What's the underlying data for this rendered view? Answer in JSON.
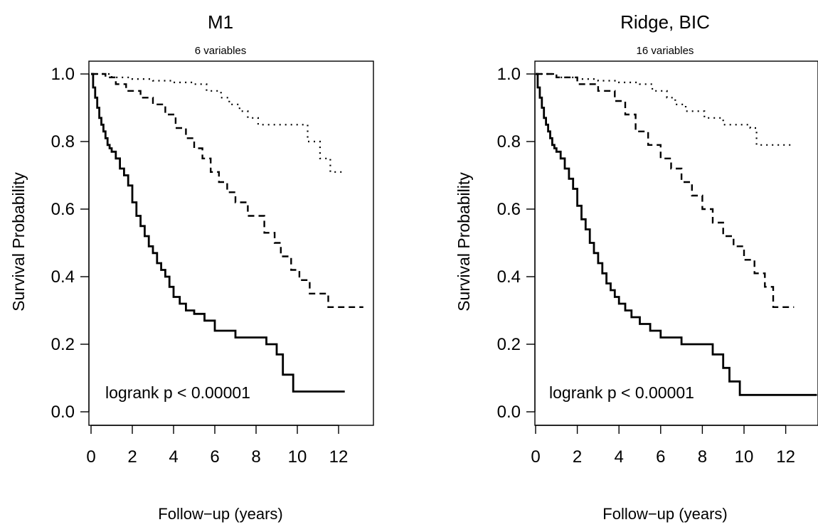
{
  "chart_data": [
    {
      "type": "line",
      "title": "M1",
      "subtitle": "6 variables",
      "xlabel": "Follow−up (years)",
      "ylabel": "Survival Probability",
      "xlim": [
        0,
        13.5
      ],
      "ylim": [
        0,
        1.0
      ],
      "xticks": [
        0,
        2,
        4,
        6,
        8,
        10,
        12
      ],
      "yticks": [
        0.0,
        0.2,
        0.4,
        0.6,
        0.8,
        1.0
      ],
      "xtick_labels": [
        "0",
        "2",
        "4",
        "6",
        "8",
        "10",
        "12"
      ],
      "ytick_labels": [
        "0.0",
        "0.2",
        "0.4",
        "0.6",
        "0.8",
        "1.0"
      ],
      "grid": false,
      "annotation": "logrank p < 0.00001",
      "series": [
        {
          "style": "solid",
          "x": [
            0,
            0.1,
            0.2,
            0.3,
            0.4,
            0.5,
            0.6,
            0.7,
            0.8,
            0.9,
            1.0,
            1.2,
            1.4,
            1.6,
            1.8,
            2.0,
            2.2,
            2.4,
            2.6,
            2.8,
            3.0,
            3.2,
            3.4,
            3.6,
            3.8,
            4.0,
            4.3,
            4.6,
            5.0,
            5.5,
            6.0,
            7.0,
            8.5,
            9.0,
            9.3,
            9.8,
            12.3
          ],
          "y": [
            1.0,
            0.96,
            0.93,
            0.9,
            0.87,
            0.85,
            0.83,
            0.81,
            0.79,
            0.78,
            0.77,
            0.75,
            0.72,
            0.7,
            0.67,
            0.62,
            0.58,
            0.55,
            0.52,
            0.49,
            0.47,
            0.44,
            0.42,
            0.4,
            0.37,
            0.34,
            0.32,
            0.3,
            0.29,
            0.27,
            0.24,
            0.22,
            0.2,
            0.17,
            0.11,
            0.06,
            0.06
          ]
        },
        {
          "style": "dashed",
          "x": [
            0,
            0.7,
            1.2,
            1.7,
            2.4,
            3.0,
            3.6,
            4.1,
            4.6,
            5.0,
            5.4,
            5.8,
            6.2,
            6.6,
            7.0,
            7.6,
            8.4,
            8.9,
            9.2,
            9.7,
            10.1,
            10.6,
            11.5,
            13.2
          ],
          "y": [
            1.0,
            0.99,
            0.97,
            0.95,
            0.93,
            0.91,
            0.88,
            0.84,
            0.81,
            0.78,
            0.75,
            0.71,
            0.68,
            0.65,
            0.62,
            0.58,
            0.53,
            0.5,
            0.46,
            0.42,
            0.39,
            0.35,
            0.31,
            0.31
          ]
        },
        {
          "style": "dotted",
          "x": [
            0,
            1.0,
            2.0,
            3.0,
            4.0,
            5.0,
            5.6,
            6.3,
            6.7,
            7.2,
            7.6,
            8.1,
            10.5,
            11.1,
            11.6,
            12.3
          ],
          "y": [
            1.0,
            0.99,
            0.985,
            0.98,
            0.975,
            0.97,
            0.95,
            0.93,
            0.91,
            0.89,
            0.87,
            0.85,
            0.8,
            0.75,
            0.71,
            0.71
          ]
        }
      ]
    },
    {
      "type": "line",
      "title": "Ridge, BIC",
      "subtitle": "16 variables",
      "xlabel": "Follow−up (years)",
      "ylabel": "Survival Probability",
      "xlim": [
        0,
        13.5
      ],
      "ylim": [
        0,
        1.0
      ],
      "xticks": [
        0,
        2,
        4,
        6,
        8,
        10,
        12
      ],
      "yticks": [
        0.0,
        0.2,
        0.4,
        0.6,
        0.8,
        1.0
      ],
      "xtick_labels": [
        "0",
        "2",
        "4",
        "6",
        "8",
        "10",
        "12"
      ],
      "ytick_labels": [
        "0.0",
        "0.2",
        "0.4",
        "0.6",
        "0.8",
        "1.0"
      ],
      "grid": false,
      "annotation": "logrank p < 0.00001",
      "series": [
        {
          "style": "solid",
          "x": [
            0,
            0.1,
            0.2,
            0.3,
            0.4,
            0.5,
            0.6,
            0.7,
            0.8,
            0.9,
            1.0,
            1.2,
            1.4,
            1.6,
            1.8,
            2.0,
            2.2,
            2.4,
            2.6,
            2.8,
            3.0,
            3.2,
            3.4,
            3.6,
            3.8,
            4.0,
            4.3,
            4.6,
            5.0,
            5.5,
            6.0,
            7.0,
            8.5,
            9.0,
            9.3,
            9.8,
            13.5
          ],
          "y": [
            1.0,
            0.96,
            0.93,
            0.9,
            0.87,
            0.85,
            0.83,
            0.81,
            0.79,
            0.78,
            0.77,
            0.75,
            0.72,
            0.69,
            0.66,
            0.61,
            0.57,
            0.54,
            0.5,
            0.47,
            0.44,
            0.41,
            0.38,
            0.36,
            0.34,
            0.32,
            0.3,
            0.28,
            0.26,
            0.24,
            0.22,
            0.2,
            0.17,
            0.13,
            0.09,
            0.05,
            0.05
          ]
        },
        {
          "style": "dashed",
          "x": [
            0,
            1.0,
            2.0,
            3.0,
            3.8,
            4.3,
            4.8,
            5.4,
            6.0,
            6.5,
            7.0,
            7.5,
            8.0,
            8.5,
            9.0,
            9.5,
            10.0,
            10.5,
            11.0,
            11.4,
            12.4
          ],
          "y": [
            1.0,
            0.99,
            0.97,
            0.95,
            0.92,
            0.88,
            0.83,
            0.79,
            0.75,
            0.72,
            0.68,
            0.64,
            0.6,
            0.56,
            0.52,
            0.49,
            0.45,
            0.41,
            0.37,
            0.31,
            0.31
          ]
        },
        {
          "style": "dotted",
          "x": [
            0,
            1.0,
            2.0,
            3.0,
            4.0,
            5.0,
            5.6,
            6.3,
            6.7,
            7.2,
            8.1,
            9.0,
            10.3,
            10.6,
            11.3,
            12.4
          ],
          "y": [
            1.0,
            0.99,
            0.985,
            0.98,
            0.975,
            0.97,
            0.95,
            0.93,
            0.91,
            0.89,
            0.87,
            0.85,
            0.84,
            0.79,
            0.79,
            0.79
          ]
        }
      ]
    }
  ]
}
